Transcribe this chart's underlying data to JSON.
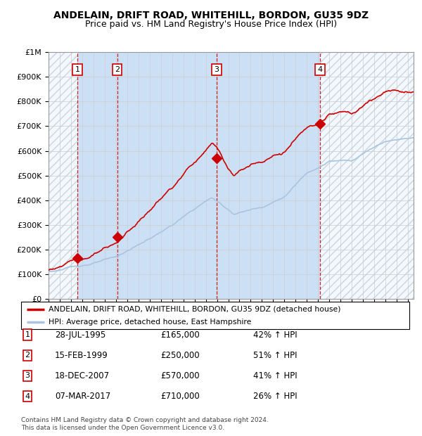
{
  "title": "ANDELAIN, DRIFT ROAD, WHITEHILL, BORDON, GU35 9DZ",
  "subtitle": "Price paid vs. HM Land Registry's House Price Index (HPI)",
  "ylim": [
    0,
    1000000
  ],
  "yticks": [
    0,
    100000,
    200000,
    300000,
    400000,
    500000,
    600000,
    700000,
    800000,
    900000,
    1000000
  ],
  "ytick_labels": [
    "£0",
    "£100K",
    "£200K",
    "£300K",
    "£400K",
    "£500K",
    "£600K",
    "£700K",
    "£800K",
    "£900K",
    "£1M"
  ],
  "xlim_start": 1993.0,
  "xlim_end": 2025.5,
  "sale_dates": [
    1995.57,
    1999.12,
    2007.96,
    2017.18
  ],
  "sale_prices": [
    165000,
    250000,
    570000,
    710000
  ],
  "sale_labels": [
    "1",
    "2",
    "3",
    "4"
  ],
  "sale_date_str": [
    "28-JUL-1995",
    "15-FEB-1999",
    "18-DEC-2007",
    "07-MAR-2017"
  ],
  "sale_price_str": [
    "£165,000",
    "£250,000",
    "£570,000",
    "£710,000"
  ],
  "sale_hpi_str": [
    "42% ↑ HPI",
    "51% ↑ HPI",
    "41% ↑ HPI",
    "26% ↑ HPI"
  ],
  "hpi_color": "#aac4df",
  "price_color": "#cc0000",
  "marker_color": "#cc0000",
  "bg_color": "#ddeeff",
  "panel_color": "#cce0f5",
  "grid_color": "#cccccc",
  "legend_label_price": "ANDELAIN, DRIFT ROAD, WHITEHILL, BORDON, GU35 9DZ (detached house)",
  "legend_label_hpi": "HPI: Average price, detached house, East Hampshire",
  "footer": "Contains HM Land Registry data © Crown copyright and database right 2024.\nThis data is licensed under the Open Government Licence v3.0.",
  "title_fontsize": 10,
  "subtitle_fontsize": 9
}
